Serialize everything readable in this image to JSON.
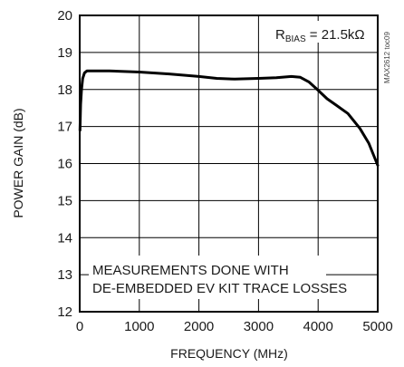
{
  "chart_data": {
    "type": "line",
    "title": "",
    "xlabel": "FREQUENCY (MHz)",
    "ylabel": "POWER GAIN (dB)",
    "xlim": [
      0,
      5000
    ],
    "ylim": [
      12,
      20
    ],
    "xticks": [
      0,
      1000,
      2000,
      3000,
      4000,
      5000
    ],
    "yticks": [
      12,
      13,
      14,
      15,
      16,
      17,
      18,
      19,
      20
    ],
    "grid": true,
    "annotation_parts": {
      "r": "R",
      "sub": "BIAS",
      "rest": " = 21.5kΩ"
    },
    "note_lines": [
      "MEASUREMENTS DONE WITH",
      "DE-EMBEDDED EV KIT TRACE LOSSES"
    ],
    "figure_tag": "MAX2612 toc09",
    "series": [
      {
        "values": [
          [
            5,
            16.9
          ],
          [
            15,
            17.6
          ],
          [
            30,
            18.0
          ],
          [
            50,
            18.3
          ],
          [
            80,
            18.45
          ],
          [
            120,
            18.5
          ],
          [
            200,
            18.5
          ],
          [
            500,
            18.5
          ],
          [
            1000,
            18.47
          ],
          [
            1500,
            18.42
          ],
          [
            2000,
            18.35
          ],
          [
            2300,
            18.3
          ],
          [
            2600,
            18.28
          ],
          [
            3000,
            18.3
          ],
          [
            3300,
            18.32
          ],
          [
            3550,
            18.35
          ],
          [
            3700,
            18.33
          ],
          [
            3850,
            18.2
          ],
          [
            4000,
            17.98
          ],
          [
            4150,
            17.75
          ],
          [
            4300,
            17.58
          ],
          [
            4500,
            17.35
          ],
          [
            4700,
            16.95
          ],
          [
            4850,
            16.55
          ],
          [
            5000,
            15.95
          ]
        ]
      }
    ]
  }
}
